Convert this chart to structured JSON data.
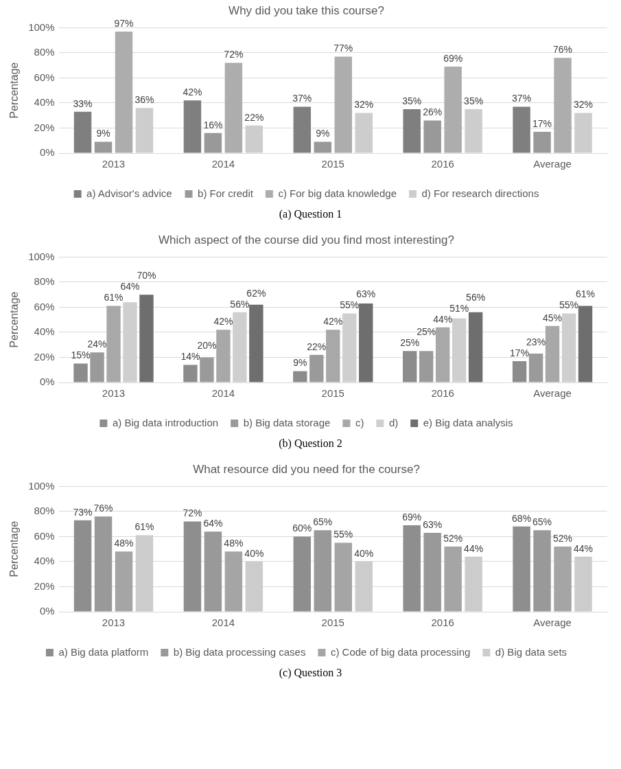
{
  "chart_data": [
    {
      "type": "bar",
      "title": "Why did you take this course?",
      "ylabel": "Percentage",
      "categories": [
        "2013",
        "2014",
        "2015",
        "2016",
        "Average"
      ],
      "ylim": [
        0,
        100
      ],
      "yticks": [
        {
          "value": 0,
          "label": "0%"
        },
        {
          "value": 20,
          "label": "20%"
        },
        {
          "value": 40,
          "label": "40%"
        },
        {
          "value": 60,
          "label": "60%"
        },
        {
          "value": 80,
          "label": "80%"
        },
        {
          "value": 100,
          "label": "100%"
        }
      ],
      "grid": "y",
      "legend": "bottom",
      "annotations": [
        "(a)   Question 1"
      ],
      "series": [
        {
          "name": "a) Advisor's advice",
          "color": "#7f7f7f",
          "values": [
            33,
            42,
            37,
            35,
            37
          ],
          "value_labels": [
            "33%",
            "42%",
            "37%",
            "35%",
            "37%"
          ]
        },
        {
          "name": "b) For credit",
          "color": "#999999",
          "values": [
            9,
            16,
            9,
            26,
            17
          ],
          "value_labels": [
            "9%",
            "16%",
            "9%",
            "26%",
            "17%"
          ]
        },
        {
          "name": "c) For big data knowledge",
          "color": "#adadad",
          "values": [
            97,
            72,
            77,
            69,
            76
          ],
          "value_labels": [
            "97%",
            "72%",
            "77%",
            "69%",
            "76%"
          ]
        },
        {
          "name": "d) For research directions",
          "color": "#cdcdcd",
          "values": [
            36,
            22,
            32,
            35,
            32
          ],
          "value_labels": [
            "36%",
            "22%",
            "32%",
            "35%",
            "32%"
          ]
        }
      ]
    },
    {
      "type": "bar",
      "title": "Which aspect of the course did you find most interesting?",
      "ylabel": "Percentage",
      "categories": [
        "2013",
        "2014",
        "2015",
        "2016",
        "Average"
      ],
      "ylim": [
        0,
        100
      ],
      "yticks": [
        {
          "value": 0,
          "label": "0%"
        },
        {
          "value": 20,
          "label": "20%"
        },
        {
          "value": 40,
          "label": "40%"
        },
        {
          "value": 60,
          "label": "60%"
        },
        {
          "value": 80,
          "label": "80%"
        },
        {
          "value": 100,
          "label": "100%"
        }
      ],
      "grid": "y",
      "legend": "bottom",
      "annotations": [
        "(b)   Question 2"
      ],
      "series": [
        {
          "name": "a) Big data introduction",
          "color": "#8c8c8c",
          "values": [
            15,
            14,
            9,
            25,
            17
          ],
          "value_labels": [
            "15%",
            "14%",
            "9%",
            "25%",
            "17%"
          ]
        },
        {
          "name": "b) Big data storage",
          "color": "#9a9a9a",
          "values": [
            24,
            20,
            22,
            25,
            23
          ],
          "value_labels": [
            "24%",
            "20%",
            "22%",
            "25%",
            "23%"
          ]
        },
        {
          "name": "c)",
          "color": "#a8a8a8",
          "values": [
            61,
            42,
            42,
            44,
            45
          ],
          "value_labels": [
            "61%",
            "42%",
            "42%",
            "44%",
            "45%"
          ]
        },
        {
          "name": "d)",
          "color": "#cfcfcf",
          "values": [
            64,
            56,
            55,
            51,
            55
          ],
          "value_labels": [
            "64%",
            "56%",
            "55%",
            "51%",
            "55%"
          ]
        },
        {
          "name": "e) Big data analysis",
          "color": "#6e6e6e",
          "values": [
            70,
            62,
            63,
            56,
            61
          ],
          "value_labels": [
            "70%",
            "62%",
            "63%",
            "56%",
            "61%"
          ]
        }
      ]
    },
    {
      "type": "bar",
      "title": "What resource did you need for the course?",
      "ylabel": "Percentage",
      "categories": [
        "2013",
        "2014",
        "2015",
        "2016",
        "Average"
      ],
      "ylim": [
        0,
        100
      ],
      "yticks": [
        {
          "value": 0,
          "label": "0%"
        },
        {
          "value": 20,
          "label": "20%"
        },
        {
          "value": 40,
          "label": "40%"
        },
        {
          "value": 60,
          "label": "60%"
        },
        {
          "value": 80,
          "label": "80%"
        },
        {
          "value": 100,
          "label": "100%"
        }
      ],
      "grid": "y",
      "legend": "bottom",
      "annotations": [
        "(c)   Question 3"
      ],
      "series": [
        {
          "name": "a) Big data platform",
          "color": "#8e8e8e",
          "values": [
            73,
            72,
            60,
            69,
            68
          ],
          "value_labels": [
            "73%",
            "72%",
            "60%",
            "69%",
            "68%"
          ]
        },
        {
          "name": "b) Big data processing cases",
          "color": "#999999",
          "values": [
            76,
            64,
            65,
            63,
            65
          ],
          "value_labels": [
            "76%",
            "64%",
            "65%",
            "63%",
            "65%"
          ]
        },
        {
          "name": "c) Code of big data processing",
          "color": "#a5a5a5",
          "values": [
            48,
            48,
            55,
            52,
            52
          ],
          "value_labels": [
            "48%",
            "48%",
            "55%",
            "52%",
            "52%"
          ]
        },
        {
          "name": "d) Big data sets",
          "color": "#cccccc",
          "values": [
            61,
            40,
            40,
            44,
            44
          ],
          "value_labels": [
            "61%",
            "40%",
            "40%",
            "44%",
            "44%"
          ]
        }
      ]
    }
  ]
}
